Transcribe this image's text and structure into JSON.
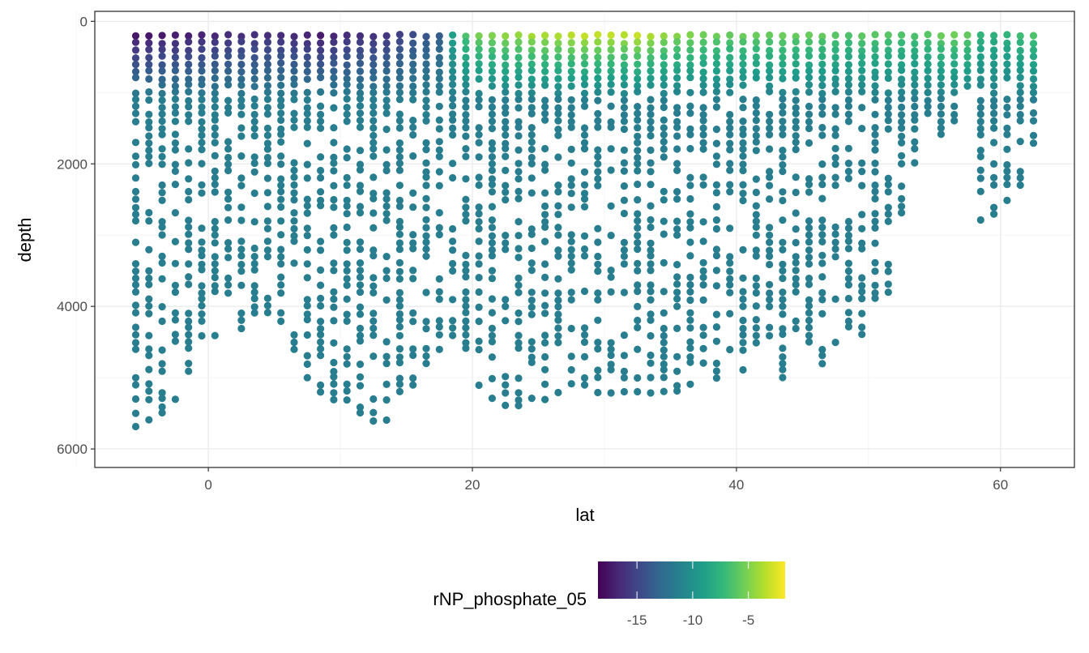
{
  "chart_data": {
    "type": "scatter",
    "title": "",
    "xlabel": "lat",
    "ylabel": "depth",
    "xlim": [
      -8.6,
      65.6
    ],
    "ylim": [
      6260,
      -140
    ],
    "y_reversed": true,
    "x_ticks": [
      "0",
      "20",
      "40",
      "60"
    ],
    "x_tick_values": [
      0,
      20,
      40,
      60
    ],
    "y_ticks": [
      "0",
      "2000",
      "4000",
      "6000"
    ],
    "y_tick_values": [
      0,
      2000,
      4000,
      6000
    ],
    "grid": true,
    "legend": {
      "title": "rNP_phosphate_05",
      "position": "bottom",
      "ticks": [
        "-15",
        "-10",
        "-5"
      ],
      "tick_values": [
        -15,
        -10,
        -5
      ],
      "range": [
        -18.5,
        -1.7
      ],
      "palette": [
        "#440154",
        "#482878",
        "#3e4989",
        "#31688e",
        "#26828e",
        "#1f9e89",
        "#35b779",
        "#6ece58",
        "#b5de2b",
        "#fde725"
      ]
    },
    "station_lats": [
      -5.5,
      -4.5,
      -3.5,
      -2.5,
      -1.5,
      -0.5,
      0.5,
      1.5,
      2.5,
      3.5,
      4.5,
      5.5,
      6.5,
      7.5,
      8.5,
      9.5,
      10.5,
      11.5,
      12.5,
      13.5,
      14.5,
      15.5,
      16.5,
      17.5,
      18.5,
      19.5,
      20.5,
      21.5,
      22.5,
      23.5,
      24.5,
      25.5,
      26.5,
      27.5,
      28.5,
      29.5,
      30.5,
      31.5,
      32.5,
      33.5,
      34.5,
      35.5,
      36.5,
      37.5,
      38.5,
      39.5,
      40.5,
      41.5,
      42.5,
      43.5,
      44.5,
      45.5,
      46.5,
      47.5,
      48.5,
      49.5,
      50.5,
      51.5,
      52.5,
      53.5,
      54.5,
      55.5,
      56.5,
      57.5,
      58.5,
      59.5,
      60.5,
      61.5,
      62.5
    ],
    "station_max_depth": [
      5760,
      5660,
      5520,
      5320,
      4920,
      4420,
      4400,
      3850,
      4380,
      4120,
      4120,
      4250,
      4620,
      5050,
      5200,
      5380,
      5350,
      5520,
      5650,
      5640,
      5280,
      5140,
      4830,
      4650,
      4400,
      4600,
      5150,
      5330,
      5480,
      5480,
      5390,
      5320,
      5240,
      5190,
      5180,
      5200,
      5200,
      5210,
      5230,
      5280,
      5200,
      5230,
      5130,
      4800,
      5080,
      4680,
      4900,
      4560,
      4420,
      5080,
      4350,
      4510,
      4820,
      4540,
      4380,
      4400,
      3900,
      3800,
      2700,
      2000,
      1300,
      1600,
      1400,
      900,
      2800,
      2750,
      2520,
      2330,
      1760
    ],
    "surface_index": [
      -17.5,
      -17.5,
      -17.3,
      -17.0,
      -17.0,
      -16.8,
      -16.6,
      -16.3,
      -16.2,
      -16.2,
      -16.2,
      -16.3,
      -16.4,
      -16.8,
      -17.2,
      -16.8,
      -16.3,
      -16.2,
      -16.0,
      -15.8,
      -15.3,
      -14.5,
      -14.0,
      -13.5,
      -9.0,
      -6.5,
      -5.2,
      -5.0,
      -4.6,
      -4.4,
      -4.0,
      -3.9,
      -3.8,
      -3.5,
      -3.2,
      -3.2,
      -3.2,
      -3.6,
      -3.0,
      -3.8,
      -4.5,
      -4.8,
      -5.0,
      -5.4,
      -5.5,
      -5.8,
      -5.6,
      -5.6,
      -5.7,
      -5.5,
      -5.7,
      -5.6,
      -5.8,
      -6.2,
      -6.5,
      -6.0,
      -6.2,
      -6.2,
      -6.4,
      -6.6,
      -6.2,
      -5.6,
      -5.4,
      -5.8,
      -7.5,
      -7.8,
      -7.6,
      -7.0,
      -6.5
    ],
    "deep_index": -11.3,
    "depth_step": 100,
    "first_depth": 200,
    "point_density": 0.55
  }
}
